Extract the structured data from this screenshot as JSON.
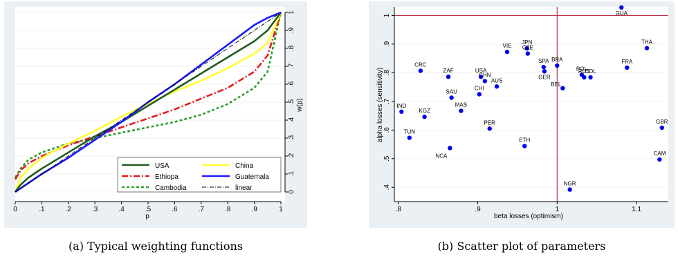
{
  "chart_data": [
    {
      "type": "line",
      "caption": "(a)  Typical weighting functions",
      "xlabel": "p",
      "ylabel": "w(p)",
      "xlim": [
        0,
        1
      ],
      "ylim": [
        0,
        1
      ],
      "x_ticks": [
        0,
        0.1,
        0.2,
        0.3,
        0.4,
        0.5,
        0.6,
        0.7,
        0.8,
        0.9,
        1
      ],
      "x_tick_labels": [
        "0",
        ".1",
        ".2",
        ".3",
        ".4",
        ".5",
        ".6",
        ".7",
        ".8",
        ".9",
        "1"
      ],
      "y_ticks": [
        0,
        0.1,
        0.2,
        0.3,
        0.4,
        0.5,
        0.6,
        0.7,
        0.8,
        0.9,
        1
      ],
      "y_tick_labels": [
        "0",
        ".1",
        ".2",
        ".3",
        ".4",
        ".5",
        ".6",
        ".7",
        ".8",
        ".9",
        "1"
      ],
      "y_axis_side": "right",
      "grid": true,
      "legend_position": "bottom-right",
      "series": [
        {
          "name": "USA",
          "color": "#1f5b1f",
          "dash": "solid",
          "width": 2.6,
          "x": [
            0,
            0.02,
            0.05,
            0.1,
            0.2,
            0.3,
            0.4,
            0.5,
            0.6,
            0.7,
            0.8,
            0.9,
            0.95,
            1
          ],
          "y": [
            0,
            0.04,
            0.08,
            0.13,
            0.22,
            0.31,
            0.39,
            0.48,
            0.57,
            0.66,
            0.75,
            0.84,
            0.9,
            1
          ]
        },
        {
          "name": "China",
          "color": "#ffff33",
          "dash": "solid",
          "width": 2.6,
          "x": [
            0,
            0.02,
            0.05,
            0.1,
            0.2,
            0.3,
            0.4,
            0.5,
            0.6,
            0.7,
            0.8,
            0.9,
            0.95,
            1
          ],
          "y": [
            0,
            0.08,
            0.13,
            0.19,
            0.27,
            0.34,
            0.42,
            0.49,
            0.56,
            0.62,
            0.69,
            0.77,
            0.83,
            1
          ]
        },
        {
          "name": "Ethiopa",
          "color": "#e41a1c",
          "dash": "9,3,2,3",
          "width": 2.6,
          "x": [
            0,
            0.02,
            0.05,
            0.1,
            0.2,
            0.3,
            0.4,
            0.5,
            0.6,
            0.7,
            0.8,
            0.9,
            0.95,
            1
          ],
          "y": [
            0.07,
            0.12,
            0.16,
            0.2,
            0.26,
            0.31,
            0.36,
            0.41,
            0.46,
            0.52,
            0.58,
            0.67,
            0.76,
            1
          ]
        },
        {
          "name": "Guatemala",
          "color": "#1a1aff",
          "dash": "solid",
          "width": 2.6,
          "x": [
            0,
            0.02,
            0.05,
            0.1,
            0.2,
            0.3,
            0.4,
            0.5,
            0.6,
            0.7,
            0.8,
            0.9,
            0.95,
            1
          ],
          "y": [
            0,
            0.02,
            0.05,
            0.1,
            0.19,
            0.29,
            0.39,
            0.5,
            0.6,
            0.71,
            0.82,
            0.93,
            0.97,
            1
          ]
        },
        {
          "name": "Cambodia",
          "color": "#2e9e2e",
          "dash": "4,3",
          "width": 2.6,
          "x": [
            0,
            0.02,
            0.05,
            0.1,
            0.2,
            0.3,
            0.4,
            0.5,
            0.6,
            0.7,
            0.8,
            0.9,
            0.95,
            1
          ],
          "y": [
            0.08,
            0.13,
            0.18,
            0.22,
            0.27,
            0.3,
            0.33,
            0.36,
            0.39,
            0.43,
            0.49,
            0.58,
            0.67,
            1
          ]
        },
        {
          "name": "linear",
          "color": "#000000",
          "dash": "6,2,1,2",
          "width": 1,
          "x": [
            0,
            1
          ],
          "y": [
            0,
            1
          ]
        }
      ]
    },
    {
      "type": "scatter",
      "caption": "(b)  Scatter plot of parameters",
      "xlabel": "beta losses (optimism)",
      "ylabel": "alpha losses (sensitivity)",
      "xlim": [
        0.795,
        1.14
      ],
      "ylim": [
        0.35,
        1.03
      ],
      "x_ticks": [
        0.8,
        0.9,
        1,
        1.1
      ],
      "x_tick_labels": [
        ".8",
        ".9",
        "1",
        "1.1"
      ],
      "y_ticks": [
        0.4,
        0.5,
        0.6,
        0.7,
        0.8,
        0.9,
        1
      ],
      "y_tick_labels": [
        ".4",
        ".5",
        ".6",
        ".7",
        ".8",
        ".9",
        "1"
      ],
      "grid": true,
      "reference_lines": {
        "x": 1,
        "y": 1,
        "color": "#c0334d"
      },
      "point_color": "#0000ee",
      "points": [
        {
          "label": "GUA",
          "x": 1.081,
          "y": 1.028
        },
        {
          "label": "THA",
          "x": 1.113,
          "y": 0.886
        },
        {
          "label": "FRA",
          "x": 1.088,
          "y": 0.818
        },
        {
          "label": "GBR",
          "x": 1.132,
          "y": 0.608
        },
        {
          "label": "CAM",
          "x": 1.129,
          "y": 0.497
        },
        {
          "label": "NGR",
          "x": 1.016,
          "y": 0.392
        },
        {
          "label": "VIE",
          "x": 0.937,
          "y": 0.873
        },
        {
          "label": "JPN",
          "x": 0.962,
          "y": 0.885
        },
        {
          "label": "CZE",
          "x": 0.963,
          "y": 0.867
        },
        {
          "label": "BRA",
          "x": 1.0,
          "y": 0.825
        },
        {
          "label": "SPA",
          "x": 0.983,
          "y": 0.82
        },
        {
          "label": "GER",
          "x": 0.984,
          "y": 0.805
        },
        {
          "label": "POL",
          "x": 1.031,
          "y": 0.793
        },
        {
          "label": "RUS",
          "x": 1.034,
          "y": 0.784
        },
        {
          "label": "COL",
          "x": 1.042,
          "y": 0.784
        },
        {
          "label": "BEL",
          "x": 1.007,
          "y": 0.746
        },
        {
          "label": "CRC",
          "x": 0.828,
          "y": 0.807
        },
        {
          "label": "ZAF",
          "x": 0.863,
          "y": 0.786
        },
        {
          "label": "USA",
          "x": 0.904,
          "y": 0.786
        },
        {
          "label": "CHN",
          "x": 0.909,
          "y": 0.771
        },
        {
          "label": "AUS",
          "x": 0.924,
          "y": 0.752
        },
        {
          "label": "CHI",
          "x": 0.902,
          "y": 0.725
        },
        {
          "label": "SAU",
          "x": 0.867,
          "y": 0.713
        },
        {
          "label": "MAS",
          "x": 0.879,
          "y": 0.667
        },
        {
          "label": "IND",
          "x": 0.804,
          "y": 0.664
        },
        {
          "label": "KGZ",
          "x": 0.833,
          "y": 0.646
        },
        {
          "label": "TUN",
          "x": 0.814,
          "y": 0.573
        },
        {
          "label": "PER",
          "x": 0.915,
          "y": 0.605
        },
        {
          "label": "ETH",
          "x": 0.959,
          "y": 0.544
        },
        {
          "label": "NCA",
          "x": 0.865,
          "y": 0.537
        }
      ]
    }
  ]
}
